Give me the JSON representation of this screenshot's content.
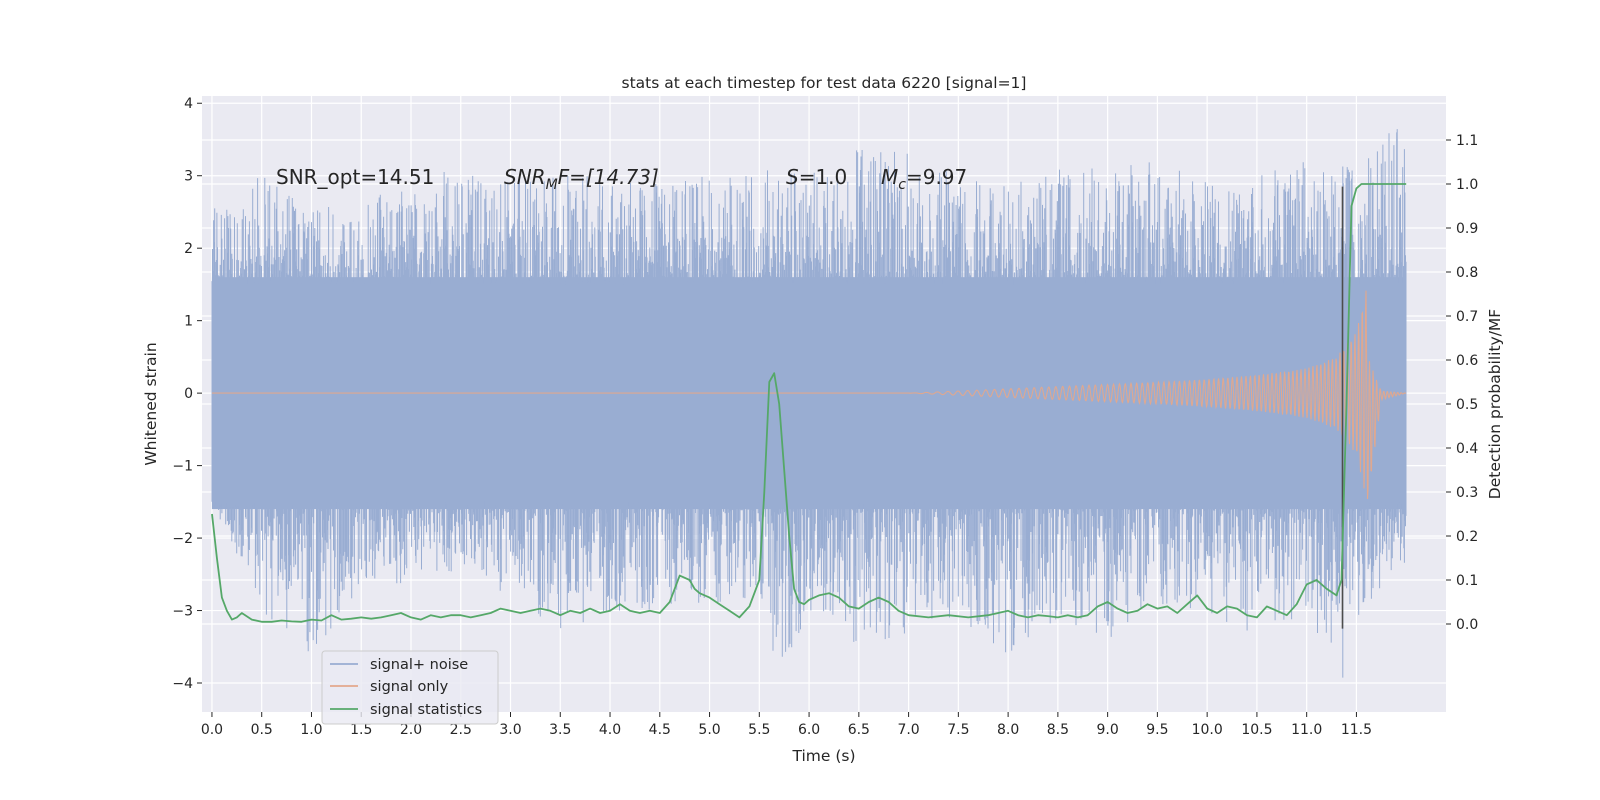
{
  "chart_data": {
    "type": "line",
    "title": "stats at each timestep for test data 6220 [signal=1]",
    "xlabel": "Time (s)",
    "ylabel": "Whitened strain",
    "y2label": "Detection probability/MF",
    "xlim": [
      -0.1,
      12.4
    ],
    "ylim": [
      -4.4,
      4.1
    ],
    "y2lim": [
      -0.2,
      1.2
    ],
    "grid": true,
    "xticks": [
      0.0,
      0.5,
      1.0,
      1.5,
      2.0,
      2.5,
      3.0,
      3.5,
      4.0,
      4.5,
      5.0,
      5.5,
      6.0,
      6.5,
      7.0,
      7.5,
      8.0,
      8.5,
      9.0,
      9.5,
      10.0,
      10.5,
      11.0,
      11.5
    ],
    "xtick_labels": [
      "0.0",
      "0.5",
      "1.0",
      "1.5",
      "2.0",
      "2.5",
      "3.0",
      "3.5",
      "4.0",
      "4.5",
      "5.0",
      "5.5",
      "6.0",
      "6.5",
      "7.0",
      "7.5",
      "8.0",
      "8.5",
      "9.0",
      "9.5",
      "10.0",
      "10.5",
      "11.0",
      "11.5"
    ],
    "yticks": [
      -4,
      -3,
      -2,
      -1,
      0,
      1,
      2,
      3,
      4
    ],
    "ytick_labels": [
      "−4",
      "−3",
      "−2",
      "−1",
      "0",
      "1",
      "2",
      "3",
      "4"
    ],
    "y2ticks": [
      0.0,
      0.1,
      0.2,
      0.3,
      0.4,
      0.5,
      0.6,
      0.7,
      0.8,
      0.9,
      1.0,
      1.1
    ],
    "y2tick_labels": [
      "0.0",
      "0.1",
      "0.2",
      "0.3",
      "0.4",
      "0.5",
      "0.6",
      "0.7",
      "0.8",
      "0.9",
      "1.0",
      "1.1"
    ],
    "legend": {
      "position": "lower-left",
      "entries": [
        {
          "name": "signal+ noise",
          "color": "#99add2"
        },
        {
          "name": "signal only",
          "color": "#e3a88c"
        },
        {
          "name": "signal statistics",
          "color": "#55a868"
        }
      ]
    },
    "colors": {
      "background": "#eaeaf2",
      "grid": "#ffffff",
      "noise": "#99add2",
      "signal": "#e3a88c",
      "stat": "#55a868",
      "marker_line": "#4d4d4d"
    },
    "annotations": {
      "snr_opt": "SNR_opt=14.51",
      "snr_mf_sym": "SNR",
      "snr_mf_sub": "M",
      "snr_mf_rest": "F=[14.73]",
      "s_sym": "S",
      "s_rest": "=1.0",
      "mc_sym": "M",
      "mc_sub": "c",
      "mc_rest": "=9.97"
    },
    "marker_x": 11.36,
    "noise": {
      "t_start": 0.0,
      "t_end": 12.0,
      "upper_envelope": [
        [
          0.0,
          2.6
        ],
        [
          0.5,
          3.0
        ],
        [
          1.0,
          2.5
        ],
        [
          1.5,
          2.7
        ],
        [
          2.0,
          2.8
        ],
        [
          2.5,
          3.2
        ],
        [
          3.0,
          2.9
        ],
        [
          3.5,
          3.1
        ],
        [
          4.0,
          2.9
        ],
        [
          4.5,
          2.9
        ],
        [
          5.0,
          3.0
        ],
        [
          5.5,
          3.1
        ],
        [
          6.0,
          3.0
        ],
        [
          6.5,
          3.4
        ],
        [
          7.0,
          3.3
        ],
        [
          7.5,
          3.0
        ],
        [
          8.0,
          2.9
        ],
        [
          8.5,
          3.1
        ],
        [
          9.0,
          3.1
        ],
        [
          9.5,
          3.2
        ],
        [
          10.0,
          2.9
        ],
        [
          10.5,
          3.0
        ],
        [
          11.0,
          3.2
        ],
        [
          11.5,
          3.1
        ],
        [
          11.9,
          3.7
        ]
      ],
      "lower_envelope": [
        [
          0.0,
          -1.5
        ],
        [
          0.5,
          -3.0
        ],
        [
          1.0,
          -3.6
        ],
        [
          1.5,
          -2.7
        ],
        [
          2.0,
          -2.6
        ],
        [
          2.5,
          -2.5
        ],
        [
          3.0,
          -2.8
        ],
        [
          3.5,
          -3.3
        ],
        [
          4.0,
          -3.0
        ],
        [
          4.5,
          -3.0
        ],
        [
          5.0,
          -2.9
        ],
        [
          5.5,
          -2.8
        ],
        [
          5.7,
          -3.9
        ],
        [
          6.0,
          -3.0
        ],
        [
          6.5,
          -3.5
        ],
        [
          7.0,
          -3.3
        ],
        [
          7.5,
          -3.1
        ],
        [
          8.0,
          -3.6
        ],
        [
          8.5,
          -3.1
        ],
        [
          9.0,
          -3.4
        ],
        [
          9.5,
          -2.9
        ],
        [
          10.0,
          -3.0
        ],
        [
          10.5,
          -3.4
        ],
        [
          11.0,
          -3.0
        ],
        [
          11.35,
          -4.0
        ],
        [
          11.5,
          -3.1
        ],
        [
          11.9,
          -2.4
        ]
      ]
    },
    "signal": {
      "t_start": 0.0,
      "t_end": 12.0,
      "merger_t": 11.62,
      "envelope": [
        [
          0.0,
          0.0
        ],
        [
          7.0,
          0.0
        ],
        [
          7.5,
          0.03
        ],
        [
          8.0,
          0.06
        ],
        [
          8.5,
          0.09
        ],
        [
          9.0,
          0.12
        ],
        [
          9.5,
          0.15
        ],
        [
          10.0,
          0.19
        ],
        [
          10.5,
          0.25
        ],
        [
          11.0,
          0.34
        ],
        [
          11.3,
          0.5
        ],
        [
          11.5,
          0.85
        ],
        [
          11.62,
          1.6
        ],
        [
          11.75,
          0.1
        ],
        [
          12.0,
          0.0
        ]
      ]
    },
    "series": [
      {
        "name": "signal statistics",
        "axis": "right",
        "x": [
          0.0,
          0.05,
          0.1,
          0.15,
          0.2,
          0.25,
          0.3,
          0.4,
          0.5,
          0.6,
          0.7,
          0.8,
          0.9,
          1.0,
          1.1,
          1.2,
          1.3,
          1.4,
          1.5,
          1.6,
          1.7,
          1.8,
          1.9,
          2.0,
          2.1,
          2.2,
          2.3,
          2.4,
          2.5,
          2.6,
          2.7,
          2.8,
          2.9,
          3.0,
          3.1,
          3.2,
          3.3,
          3.4,
          3.5,
          3.6,
          3.7,
          3.8,
          3.9,
          4.0,
          4.1,
          4.2,
          4.3,
          4.4,
          4.5,
          4.6,
          4.7,
          4.8,
          4.85,
          4.9,
          5.0,
          5.1,
          5.2,
          5.3,
          5.4,
          5.5,
          5.55,
          5.6,
          5.65,
          5.7,
          5.75,
          5.8,
          5.85,
          5.9,
          5.95,
          6.0,
          6.1,
          6.2,
          6.3,
          6.4,
          6.5,
          6.6,
          6.7,
          6.8,
          6.9,
          7.0,
          7.2,
          7.4,
          7.6,
          7.8,
          8.0,
          8.1,
          8.2,
          8.3,
          8.4,
          8.5,
          8.6,
          8.7,
          8.8,
          8.9,
          9.0,
          9.1,
          9.2,
          9.3,
          9.4,
          9.5,
          9.6,
          9.7,
          9.8,
          9.9,
          10.0,
          10.1,
          10.2,
          10.3,
          10.4,
          10.5,
          10.6,
          10.7,
          10.8,
          10.9,
          11.0,
          11.1,
          11.2,
          11.3,
          11.35,
          11.4,
          11.45,
          11.5,
          11.55,
          11.6,
          11.7,
          11.8,
          11.9,
          12.0
        ],
        "y": [
          0.25,
          0.15,
          0.06,
          0.03,
          0.01,
          0.015,
          0.025,
          0.01,
          0.005,
          0.005,
          0.008,
          0.006,
          0.005,
          0.01,
          0.008,
          0.02,
          0.01,
          0.012,
          0.015,
          0.012,
          0.015,
          0.02,
          0.025,
          0.015,
          0.01,
          0.02,
          0.015,
          0.02,
          0.02,
          0.015,
          0.02,
          0.025,
          0.035,
          0.03,
          0.025,
          0.03,
          0.035,
          0.03,
          0.02,
          0.03,
          0.025,
          0.035,
          0.025,
          0.03,
          0.045,
          0.03,
          0.025,
          0.03,
          0.025,
          0.05,
          0.11,
          0.1,
          0.08,
          0.07,
          0.06,
          0.045,
          0.03,
          0.015,
          0.04,
          0.1,
          0.3,
          0.55,
          0.57,
          0.5,
          0.35,
          0.2,
          0.08,
          0.05,
          0.045,
          0.055,
          0.065,
          0.07,
          0.06,
          0.04,
          0.035,
          0.05,
          0.06,
          0.05,
          0.03,
          0.02,
          0.015,
          0.02,
          0.015,
          0.02,
          0.03,
          0.02,
          0.015,
          0.02,
          0.018,
          0.015,
          0.02,
          0.015,
          0.02,
          0.04,
          0.05,
          0.035,
          0.025,
          0.03,
          0.045,
          0.035,
          0.04,
          0.025,
          0.045,
          0.065,
          0.035,
          0.025,
          0.04,
          0.035,
          0.02,
          0.015,
          0.04,
          0.03,
          0.02,
          0.045,
          0.09,
          0.1,
          0.08,
          0.065,
          0.1,
          0.5,
          0.95,
          0.99,
          1.0,
          1.0,
          1.0,
          1.0,
          1.0,
          1.0
        ]
      }
    ]
  }
}
